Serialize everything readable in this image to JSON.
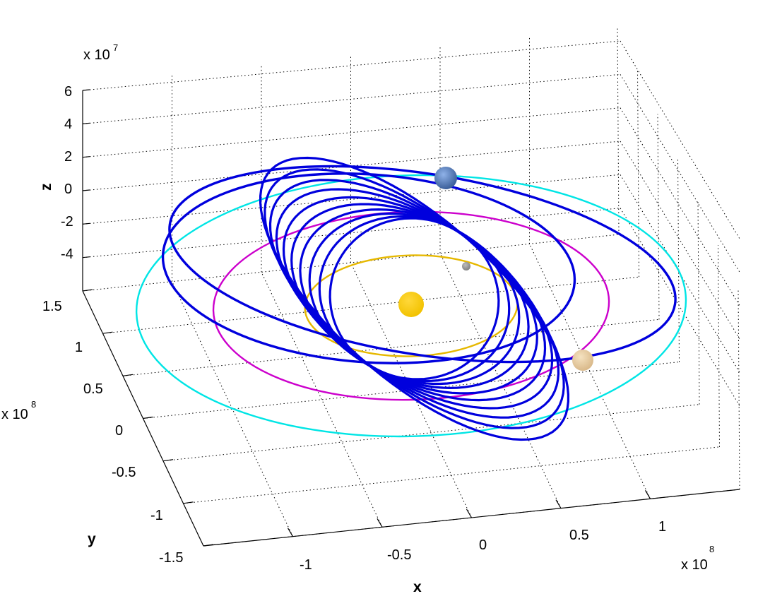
{
  "chart_data": {
    "type": "line",
    "title": "",
    "xlabel": "x",
    "ylabel": "y",
    "zlabel": "z",
    "xlim": [
      -150000000.0,
      150000000.0
    ],
    "ylim": [
      -150000000.0,
      150000000.0
    ],
    "zlim": [
      -60000000.0,
      60000000.0
    ],
    "grid": true,
    "x_ticks": [
      "-1",
      "-0.5",
      "0",
      "0.5",
      "1"
    ],
    "y_ticks": [
      "1.5",
      "1",
      "0.5",
      "0",
      "-0.5",
      "-1",
      "-1.5"
    ],
    "z_ticks": [
      "6",
      "4",
      "2",
      "0",
      "-2",
      "-4"
    ],
    "x_exponent": {
      "base": "x 10",
      "power": "8"
    },
    "y_exponent": {
      "base": "x 10",
      "power": "8"
    },
    "z_exponent": {
      "base": "x 10",
      "power": "7"
    },
    "series": [
      {
        "kind": "orbit",
        "color": "#00e5e5",
        "radius": 150000000.0
      },
      {
        "kind": "orbit",
        "color": "#cc00cc",
        "radius": 108000000.0
      },
      {
        "kind": "orbit",
        "color": "#e6b800",
        "radius": 58000000.0
      },
      {
        "kind": "trajectory",
        "color": "#0000dd",
        "loops": 10
      }
    ],
    "bodies": [
      {
        "icon": "sun-icon",
        "color": "#f2c200"
      },
      {
        "icon": "earth-icon",
        "color": "#3b5f9a"
      },
      {
        "icon": "venus-icon",
        "color": "#d9b98a"
      },
      {
        "icon": "mercury-icon",
        "color": "#808080"
      }
    ]
  }
}
